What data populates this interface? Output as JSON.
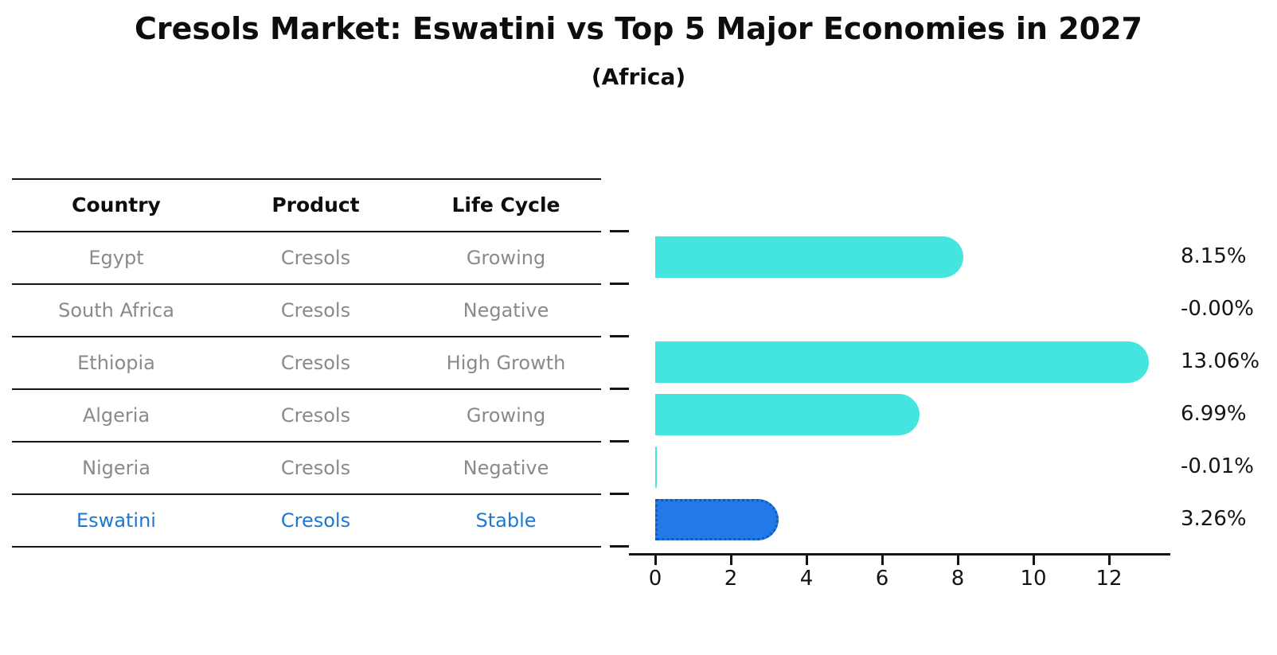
{
  "title": "Cresols Market: Eswatini vs Top 5 Major Economies in 2027",
  "subtitle": "(Africa)",
  "table": {
    "headers": [
      "Country",
      "Product",
      "Life Cycle"
    ],
    "rows": [
      {
        "country": "Egypt",
        "product": "Cresols",
        "life_cycle": "Growing",
        "highlight": false
      },
      {
        "country": "South Africa",
        "product": "Cresols",
        "life_cycle": "Negative",
        "highlight": false
      },
      {
        "country": "Ethiopia",
        "product": "Cresols",
        "life_cycle": "High Growth",
        "highlight": false
      },
      {
        "country": "Algeria",
        "product": "Cresols",
        "life_cycle": "Growing",
        "highlight": false
      },
      {
        "country": "Nigeria",
        "product": "Cresols",
        "life_cycle": "Negative",
        "highlight": false
      },
      {
        "country": "Eswatini",
        "product": "Cresols",
        "life_cycle": "Stable",
        "highlight": true
      }
    ]
  },
  "chart_data": {
    "type": "bar",
    "orientation": "horizontal",
    "title": "Cresols Market: Eswatini vs Top 5 Major Economies in 2027",
    "subtitle": "(Africa)",
    "categories": [
      "Egypt",
      "South Africa",
      "Ethiopia",
      "Algeria",
      "Nigeria",
      "Eswatini"
    ],
    "values": [
      8.15,
      -0.0,
      13.06,
      6.99,
      -0.01,
      3.26
    ],
    "value_labels": [
      "8.15%",
      "-0.00%",
      "13.06%",
      "6.99%",
      "-0.01%",
      "3.26%"
    ],
    "xlabel": "",
    "ylabel": "",
    "xticks": [
      0,
      2,
      4,
      6,
      8,
      10,
      12
    ],
    "xlim": [
      -0.7,
      13.6
    ],
    "grid": false,
    "legend": false,
    "bar_color": "#45e5df",
    "highlight_index": 5,
    "highlight_bar_color": "#2379e8",
    "highlight_bar_border_color": "#0f5bc0",
    "highlight_bar_border_style": "dotted",
    "highlight_text_color": "#1e78d2"
  },
  "colors": {
    "axis_line": "#141414",
    "table_line": "#141414",
    "muted_text": "#8a8a8a",
    "heading_text": "#0d0d0d"
  }
}
